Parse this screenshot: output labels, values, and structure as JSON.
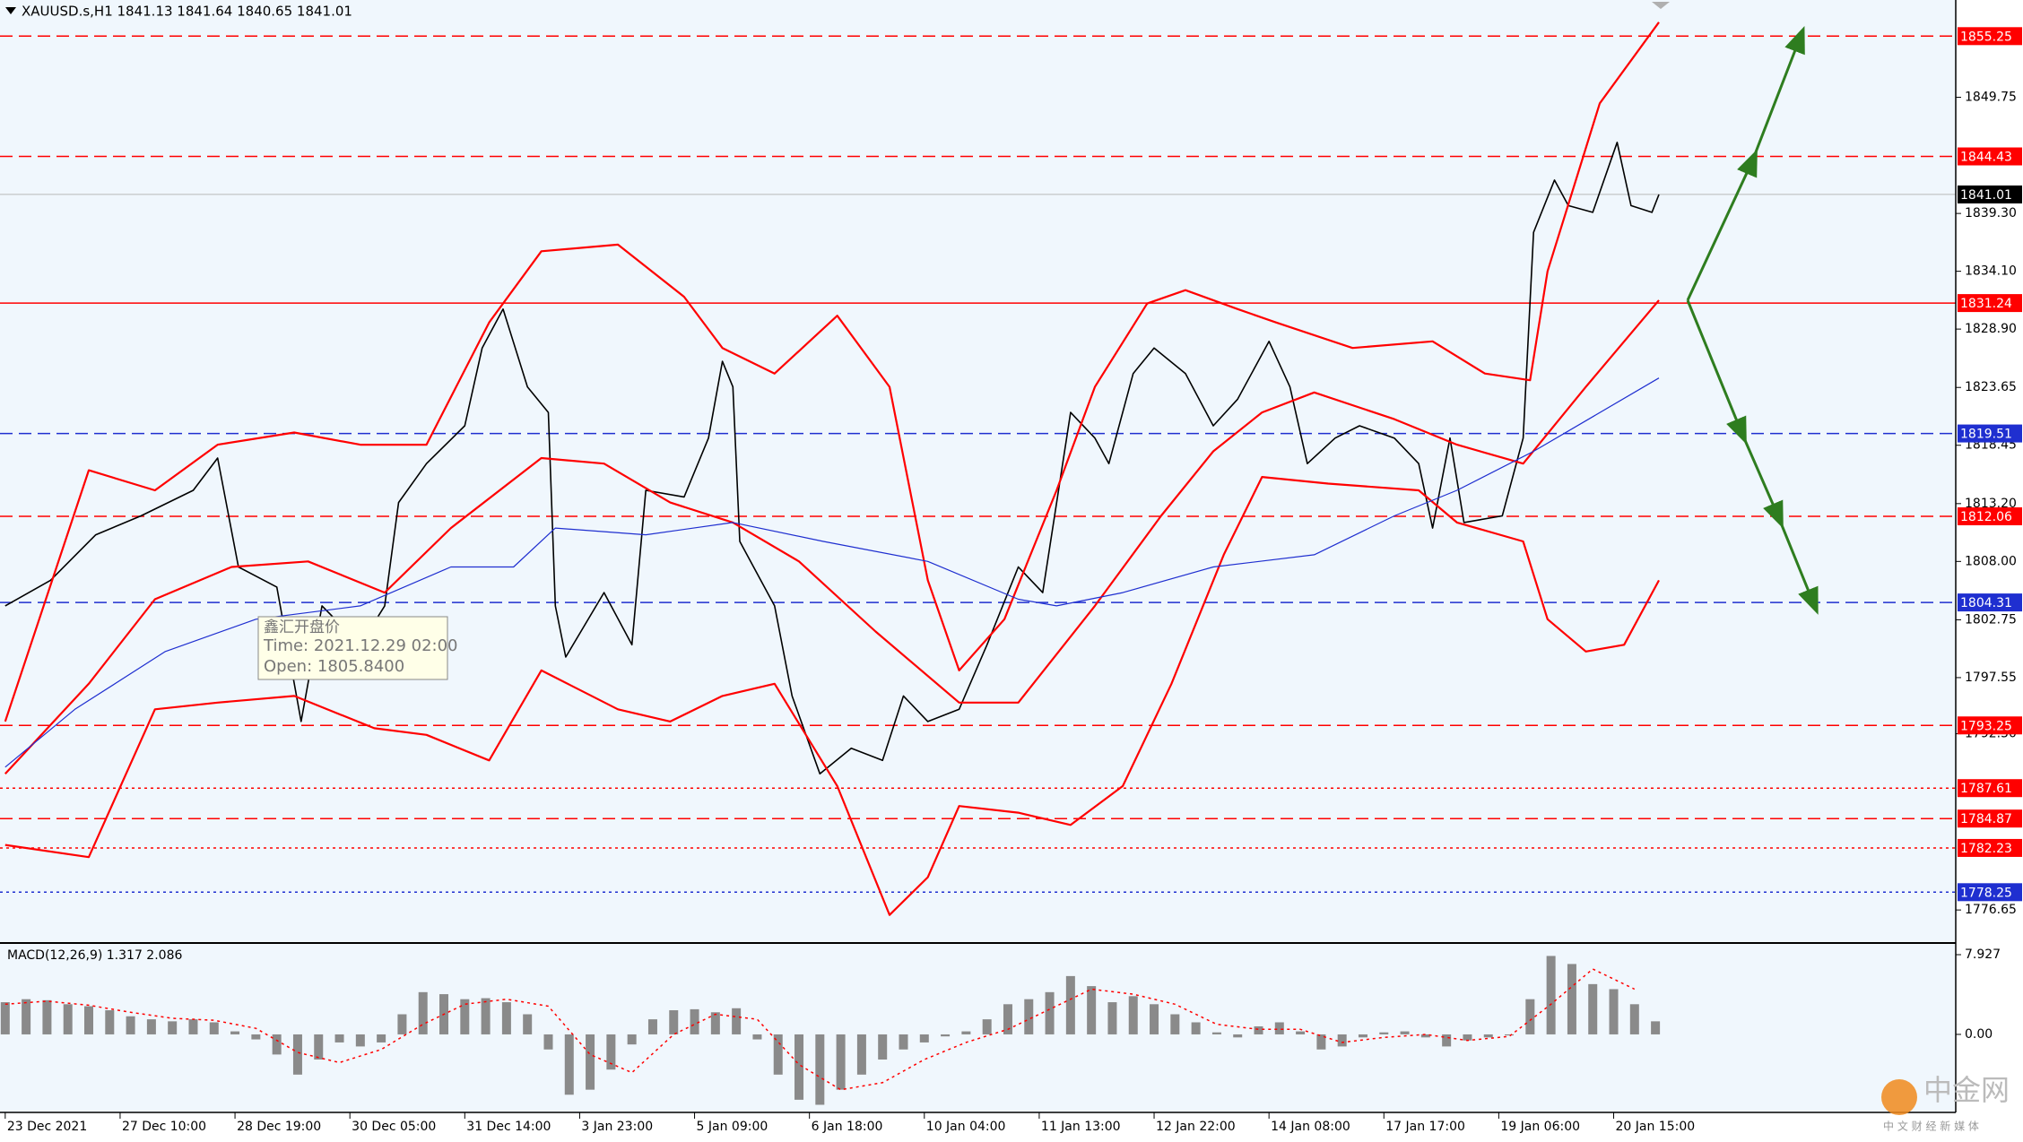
{
  "header": "XAUUSD.s,H1  1841.13 1841.64 1840.65 1841.01",
  "chart_data": [
    {
      "type": "line",
      "xlim": [
        -1.5,
        560
      ],
      "ylim": [
        1773.84,
        1858.5
      ],
      "xticks": [
        {
          "value": 0,
          "label": "23 Dec 2021"
        },
        {
          "value": 33,
          "label": "27 Dec 10:00"
        },
        {
          "value": 66,
          "label": "28 Dec 19:00"
        },
        {
          "value": 99,
          "label": "30 Dec 05:00"
        },
        {
          "value": 132,
          "label": "31 Dec 14:00"
        },
        {
          "value": 165,
          "label": "3 Jan 23:00"
        },
        {
          "value": 198,
          "label": "5 Jan 09:00"
        },
        {
          "value": 231,
          "label": "6 Jan 18:00"
        },
        {
          "value": 264,
          "label": "10 Jan 04:00"
        },
        {
          "value": 297,
          "label": "11 Jan 13:00"
        },
        {
          "value": 330,
          "label": "12 Jan 22:00"
        },
        {
          "value": 363,
          "label": "14 Jan 08:00"
        },
        {
          "value": 396,
          "label": "17 Jan 17:00"
        },
        {
          "value": 429,
          "label": "19 Jan 06:00"
        },
        {
          "value": 462,
          "label": "20 Jan 15:00"
        }
      ],
      "yticks": [
        1849.75,
        {
          "value": 1839.3,
          "label": "1839.30"
        },
        {
          "value": 1834.1,
          "label": "1834.10"
        },
        {
          "value": 1828.9,
          "label": "1828.90"
        },
        1823.65,
        1818.45,
        {
          "value": 1813.2,
          "label": "1813.20"
        },
        {
          "value": 1808,
          "label": "1808.00"
        },
        1802.75,
        1797.55,
        {
          "value": 1792.5,
          "label": "1792.50"
        },
        1776.65
      ],
      "series": [
        {
          "color": "#000000",
          "width": 1.6,
          "x": [
            0,
            13,
            26,
            39,
            54,
            61,
            67,
            78,
            85,
            91,
            102,
            109,
            113,
            121,
            132,
            137,
            143,
            150,
            156,
            158,
            161,
            172,
            180,
            184,
            195,
            202,
            206,
            209,
            211,
            221,
            226,
            234,
            243,
            252,
            258,
            265,
            274,
            282,
            291,
            298,
            306,
            313,
            317,
            324,
            330,
            339,
            347,
            354,
            363,
            369,
            374,
            382,
            389,
            399,
            406,
            410,
            415,
            419,
            430,
            436,
            439,
            445,
            449,
            456,
            463,
            467,
            473,
            475
          ],
          "values": [
            1804.0,
            1806.3,
            1810.4,
            1812.1,
            1814.4,
            1817.3,
            1807.5,
            1805.7,
            1793.6,
            1804.0,
            1800.5,
            1804.0,
            1813.3,
            1816.8,
            1820.2,
            1827.2,
            1830.7,
            1823.7,
            1821.4,
            1804.0,
            1799.4,
            1805.2,
            1800.5,
            1814.4,
            1813.8,
            1819.1,
            1826.0,
            1823.7,
            1809.8,
            1804.0,
            1795.9,
            1788.9,
            1791.2,
            1790.1,
            1795.9,
            1793.6,
            1794.7,
            1800.5,
            1807.5,
            1805.2,
            1821.4,
            1819.1,
            1816.8,
            1824.9,
            1827.2,
            1824.9,
            1820.2,
            1822.6,
            1827.8,
            1823.7,
            1816.8,
            1819.1,
            1820.2,
            1819.1,
            1816.8,
            1811.0,
            1819.1,
            1811.5,
            1812.1,
            1819.1,
            1837.6,
            1842.3,
            1840.0,
            1839.4,
            1845.7,
            1840.0,
            1839.4,
            1841.0
          ]
        },
        {
          "color": "#ff0000",
          "width": 2.2,
          "x": [
            0,
            24,
            43,
            61,
            83,
            102,
            121,
            139,
            154,
            176,
            195,
            206,
            221,
            239,
            254,
            265,
            274,
            287,
            302,
            313,
            328,
            339,
            354,
            365,
            387,
            410,
            425,
            438,
            443,
            458,
            475
          ],
          "values": [
            1793.6,
            1816.2,
            1814.4,
            1818.5,
            1819.6,
            1818.5,
            1818.5,
            1829.5,
            1835.9,
            1836.5,
            1831.8,
            1827.2,
            1824.9,
            1830.1,
            1823.7,
            1806.3,
            1798.2,
            1802.8,
            1814.4,
            1823.7,
            1831.2,
            1832.4,
            1830.7,
            1829.5,
            1827.2,
            1827.8,
            1824.9,
            1824.3,
            1834.1,
            1849.2,
            1856.5
          ]
        },
        {
          "color": "#ff0000",
          "width": 2.2,
          "x": [
            0,
            24,
            43,
            61,
            83,
            106,
            121,
            139,
            154,
            176,
            191,
            206,
            221,
            239,
            254,
            265,
            274,
            291,
            306,
            321,
            335,
            350,
            361,
            380,
            406,
            417,
            436,
            443,
            454,
            465,
            475
          ],
          "values": [
            1782.5,
            1781.4,
            1794.7,
            1795.3,
            1795.9,
            1793.0,
            1792.4,
            1790.1,
            1798.2,
            1794.7,
            1793.6,
            1795.9,
            1797.0,
            1787.8,
            1776.2,
            1779.6,
            1786.0,
            1785.4,
            1784.3,
            1787.8,
            1797.0,
            1808.6,
            1815.6,
            1815.0,
            1814.4,
            1811.5,
            1809.8,
            1802.8,
            1799.9,
            1800.5,
            1806.3
          ]
        },
        {
          "color": "#ff0000",
          "width": 2.2,
          "x": [
            0,
            24,
            43,
            65,
            87,
            109,
            128,
            154,
            172,
            191,
            209,
            228,
            250,
            274,
            291,
            313,
            332,
            347,
            361,
            376,
            399,
            417,
            436,
            454,
            475
          ],
          "values": [
            1788.9,
            1797.0,
            1804.6,
            1807.5,
            1808.0,
            1805.2,
            1811.0,
            1817.3,
            1816.8,
            1813.3,
            1811.5,
            1808.0,
            1801.7,
            1795.3,
            1795.3,
            1804.0,
            1812.1,
            1817.9,
            1821.4,
            1823.2,
            1820.8,
            1818.5,
            1816.8,
            1823.7,
            1831.5
          ]
        },
        {
          "color": "#1f2fd0",
          "width": 1.2,
          "x": [
            0,
            20,
            46,
            72,
            102,
            128,
            146,
            158,
            184,
            209,
            235,
            265,
            291,
            302,
            321,
            347,
            376,
            399,
            417,
            439,
            475
          ],
          "values": [
            1789.5,
            1794.7,
            1799.9,
            1802.8,
            1804.0,
            1807.5,
            1807.5,
            1811.0,
            1810.4,
            1811.5,
            1809.8,
            1808.0,
            1804.6,
            1804.0,
            1805.2,
            1807.5,
            1808.6,
            1812.1,
            1814.4,
            1817.9,
            1824.5
          ]
        }
      ],
      "levels": [
        {
          "value": 1855.25,
          "color": "#ff0000",
          "style": "dashed"
        },
        {
          "value": 1844.43,
          "color": "#ff0000",
          "style": "dashed"
        },
        {
          "value": 1831.24,
          "color": "#ff0000",
          "style": "solid"
        },
        {
          "value": 1819.51,
          "color": "#1f2fd0",
          "style": "dashed"
        },
        {
          "value": 1812.06,
          "color": "#ff0000",
          "style": "dashed"
        },
        {
          "value": 1804.31,
          "color": "#1f2fd0",
          "style": "dashed"
        },
        {
          "value": 1793.25,
          "color": "#ff0000",
          "style": "dashed"
        },
        {
          "value": 1787.61,
          "color": "#ff0000",
          "style": "dotted"
        },
        {
          "value": 1784.87,
          "color": "#ff0000",
          "style": "dashed"
        },
        {
          "value": 1782.23,
          "color": "#ff0000",
          "style": "dotted"
        },
        {
          "value": 1778.25,
          "color": "#1f2fd0",
          "style": "dotted"
        }
      ],
      "current": {
        "value": 1841.01,
        "color": "#b8b8b8"
      }
    },
    {
      "type": "bar",
      "title": "MACD(12,26,9) 1.317 2.086",
      "xlim": [
        -1.5,
        560
      ],
      "ylim": [
        -7.67,
        8.82
      ],
      "yticks": [
        7.927,
        {
          "value": 0,
          "label": "0.00"
        }
      ],
      "series": [
        {
          "type": "bar",
          "color": "#8a8a8a",
          "x": [
            0,
            6,
            12,
            18,
            24,
            30,
            36,
            42,
            48,
            54,
            60,
            66,
            72,
            78,
            84,
            90,
            96,
            102,
            108,
            114,
            120,
            126,
            132,
            138,
            144,
            150,
            156,
            162,
            168,
            174,
            180,
            186,
            192,
            198,
            204,
            210,
            216,
            222,
            228,
            234,
            240,
            246,
            252,
            258,
            264,
            270,
            276,
            282,
            288,
            294,
            300,
            306,
            312,
            318,
            324,
            330,
            336,
            342,
            348,
            354,
            360,
            366,
            372,
            378,
            384,
            390,
            396,
            402,
            408,
            414,
            420,
            426,
            432,
            438,
            444,
            450,
            456,
            462,
            468,
            474
          ],
          "values": [
            3.2,
            3.5,
            3.4,
            3.0,
            2.8,
            2.4,
            1.8,
            1.5,
            1.3,
            1.5,
            1.2,
            0.3,
            -0.5,
            -2.0,
            -4.0,
            -2.5,
            -0.8,
            -1.2,
            -0.8,
            2.0,
            4.2,
            4.0,
            3.5,
            3.6,
            3.2,
            2.0,
            -1.5,
            -6.0,
            -5.5,
            -3.5,
            -1.0,
            1.5,
            2.4,
            2.5,
            2.2,
            2.6,
            -0.5,
            -4.0,
            -6.5,
            -7.0,
            -5.5,
            -4.0,
            -2.5,
            -1.5,
            -0.8,
            -0.2,
            0.3,
            1.5,
            3.0,
            3.5,
            4.2,
            5.8,
            4.8,
            3.2,
            3.8,
            3.0,
            2.0,
            1.2,
            0.2,
            -0.3,
            0.8,
            1.2,
            0.3,
            -1.5,
            -1.2,
            -0.3,
            0.2,
            0.3,
            -0.3,
            -1.2,
            -0.6,
            -0.3,
            -0.1,
            3.5,
            7.8,
            7.0,
            5.0,
            4.5,
            3.0,
            1.3
          ]
        },
        {
          "type": "line",
          "color": "#ff0000",
          "style": "dotted",
          "x": [
            0,
            12,
            24,
            36,
            48,
            60,
            72,
            84,
            96,
            108,
            120,
            132,
            144,
            156,
            168,
            180,
            192,
            204,
            216,
            228,
            240,
            252,
            264,
            276,
            288,
            300,
            312,
            324,
            336,
            348,
            360,
            372,
            384,
            396,
            408,
            420,
            432,
            444,
            456,
            468
          ],
          "values": [
            3.0,
            3.3,
            2.9,
            2.2,
            1.6,
            1.4,
            0.6,
            -1.8,
            -2.8,
            -1.5,
            1.0,
            3.0,
            3.5,
            2.8,
            -2.0,
            -3.8,
            0.0,
            2.0,
            1.5,
            -3.0,
            -5.5,
            -4.8,
            -2.5,
            -0.8,
            0.5,
            2.5,
            4.5,
            4.0,
            3.0,
            1.0,
            0.5,
            0.5,
            -0.8,
            -0.3,
            0.0,
            -0.6,
            -0.2,
            3.0,
            6.5,
            4.5
          ]
        }
      ]
    }
  ],
  "tooltip": {
    "title": "鑫汇开盘价",
    "time": "Time: 2021.12.29 02:00",
    "open": "Open: 1805.8400"
  },
  "watermark": {
    "name": "中金网",
    "tagline": "中 文 财 经 新 媒 体"
  }
}
